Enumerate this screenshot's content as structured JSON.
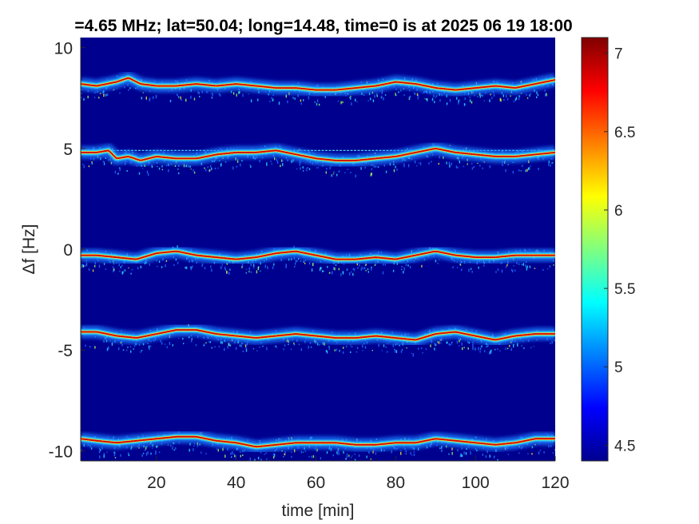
{
  "chart_data": {
    "type": "heatmap",
    "title": "=4.65 MHz;  lat=50.04; long=14.48, time=0 is at 2025 06 19 18:00",
    "xlabel": "time [min]",
    "ylabel": "Δf [Hz]",
    "xlim": [
      1,
      120
    ],
    "ylim": [
      -10.5,
      10.5
    ],
    "x_ticks": [
      20,
      40,
      60,
      80,
      100,
      120
    ],
    "y_ticks": [
      -10,
      -5,
      0,
      5,
      10
    ],
    "colorbar": {
      "clim": [
        4.4,
        7.1
      ],
      "ticks": [
        4.5,
        5,
        5.5,
        6,
        6.5,
        7
      ],
      "colormap": "jet"
    },
    "background_color": "#00008f",
    "reference_line": {
      "y": 4.9,
      "color": "#4fe3ff"
    },
    "series": [
      {
        "x": [
          1,
          5,
          10,
          13,
          16,
          20,
          25,
          30,
          35,
          40,
          45,
          50,
          55,
          60,
          65,
          70,
          75,
          80,
          85,
          90,
          95,
          100,
          105,
          110,
          115,
          120
        ],
        "y": [
          8.2,
          8.1,
          8.3,
          8.5,
          8.2,
          8.1,
          8.1,
          8.2,
          8.1,
          8.2,
          8.1,
          8.0,
          8.0,
          7.9,
          7.9,
          8.0,
          8.1,
          8.3,
          8.2,
          8.0,
          7.9,
          8.0,
          8.1,
          8.0,
          8.2,
          8.4
        ]
      },
      {
        "x": [
          1,
          5,
          8,
          10,
          13,
          16,
          20,
          25,
          30,
          35,
          40,
          45,
          50,
          55,
          60,
          65,
          70,
          75,
          80,
          85,
          90,
          95,
          100,
          105,
          110,
          115,
          120
        ],
        "y": [
          4.8,
          4.8,
          4.9,
          4.5,
          4.6,
          4.4,
          4.6,
          4.5,
          4.5,
          4.7,
          4.8,
          4.8,
          4.9,
          4.7,
          4.5,
          4.4,
          4.4,
          4.5,
          4.6,
          4.8,
          5.0,
          4.8,
          4.7,
          4.6,
          4.6,
          4.7,
          4.8
        ]
      },
      {
        "x": [
          1,
          5,
          10,
          15,
          20,
          25,
          30,
          35,
          40,
          45,
          50,
          55,
          60,
          65,
          70,
          75,
          80,
          85,
          90,
          95,
          100,
          105,
          110,
          115,
          120
        ],
        "y": [
          -0.3,
          -0.3,
          -0.4,
          -0.5,
          -0.2,
          -0.1,
          -0.3,
          -0.4,
          -0.5,
          -0.4,
          -0.2,
          -0.1,
          -0.3,
          -0.5,
          -0.5,
          -0.4,
          -0.5,
          -0.3,
          -0.1,
          -0.3,
          -0.4,
          -0.4,
          -0.3,
          -0.3,
          -0.3
        ]
      },
      {
        "x": [
          1,
          5,
          10,
          15,
          20,
          25,
          30,
          35,
          40,
          45,
          50,
          55,
          60,
          65,
          70,
          75,
          80,
          85,
          90,
          95,
          100,
          105,
          110,
          115,
          120
        ],
        "y": [
          -4.1,
          -4.1,
          -4.3,
          -4.4,
          -4.2,
          -4.0,
          -4.0,
          -4.2,
          -4.3,
          -4.4,
          -4.3,
          -4.2,
          -4.3,
          -4.4,
          -4.4,
          -4.3,
          -4.4,
          -4.5,
          -4.2,
          -4.1,
          -4.3,
          -4.5,
          -4.3,
          -4.2,
          -4.2
        ]
      },
      {
        "x": [
          1,
          5,
          10,
          15,
          20,
          25,
          30,
          35,
          40,
          45,
          50,
          55,
          60,
          65,
          70,
          75,
          80,
          85,
          90,
          95,
          100,
          105,
          110,
          115,
          120
        ],
        "y": [
          -9.4,
          -9.5,
          -9.6,
          -9.5,
          -9.4,
          -9.3,
          -9.3,
          -9.5,
          -9.6,
          -9.8,
          -9.7,
          -9.6,
          -9.6,
          -9.6,
          -9.7,
          -9.7,
          -9.6,
          -9.6,
          -9.4,
          -9.5,
          -9.6,
          -9.7,
          -9.6,
          -9.4,
          -9.4
        ]
      }
    ]
  }
}
